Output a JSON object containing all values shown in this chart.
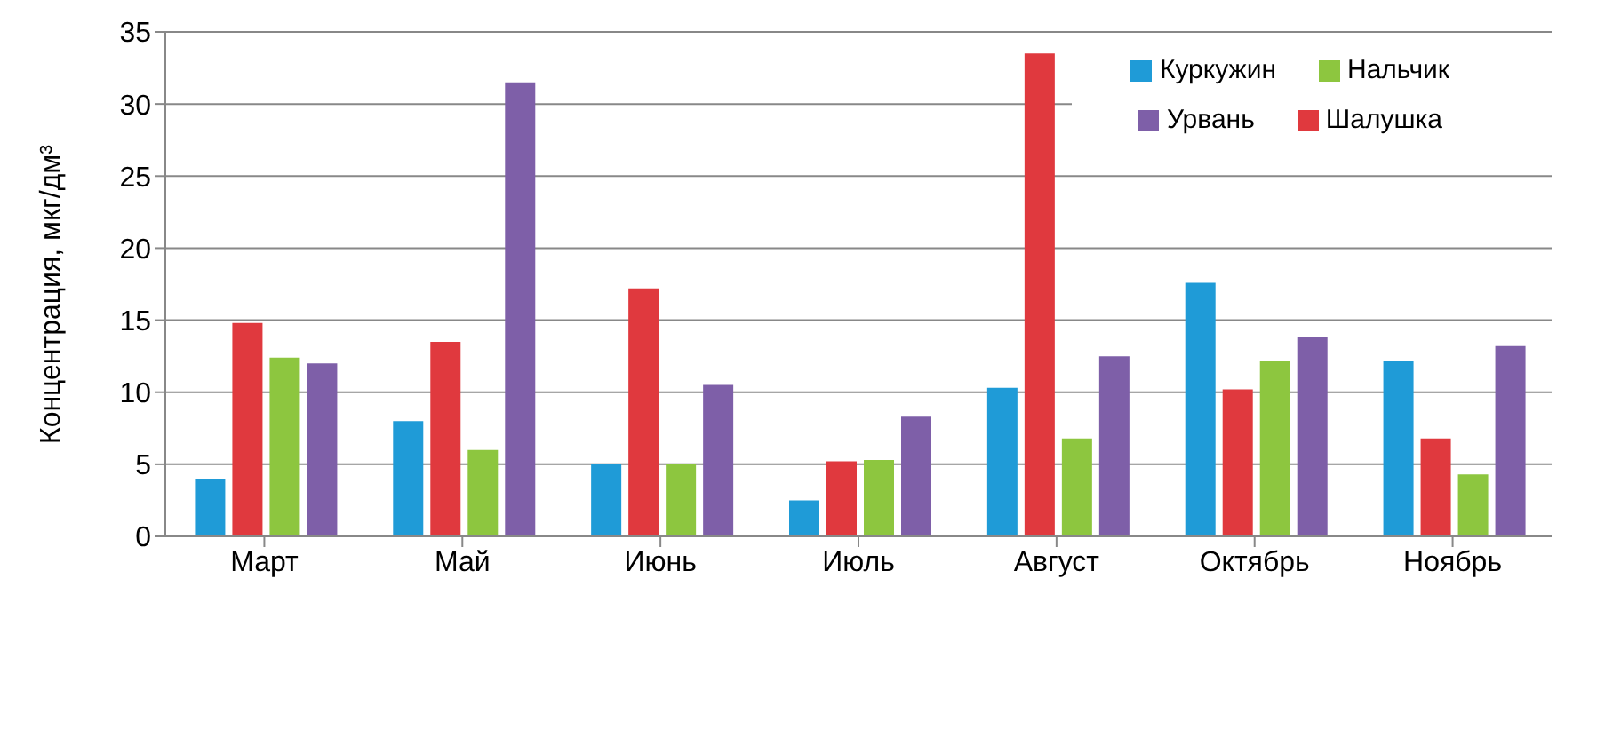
{
  "chart_data": {
    "type": "bar",
    "ylabel": "Концентрация, мкг/дм³",
    "categories": [
      "Март",
      "Май",
      "Июнь",
      "Июль",
      "Август",
      "Октябрь",
      "Ноябрь"
    ],
    "series": [
      {
        "name": "Куркужин",
        "color": "#1f9bd7",
        "values": [
          4,
          8,
          5,
          2.5,
          10.3,
          17.6,
          12.2
        ]
      },
      {
        "name": "Шалушка",
        "color": "#e0393e",
        "values": [
          14.8,
          13.5,
          17.2,
          5.2,
          33.5,
          10.2,
          6.8
        ]
      },
      {
        "name": "Нальчик",
        "color": "#8dc63f",
        "values": [
          12.4,
          6,
          5,
          5.3,
          6.8,
          12.2,
          4.3
        ]
      },
      {
        "name": "Урвань",
        "color": "#7e5fa8",
        "values": [
          12,
          31.5,
          10.5,
          8.3,
          12.5,
          13.8,
          13.2
        ]
      }
    ],
    "ylim": [
      0,
      35
    ],
    "yticks": [
      0,
      5,
      10,
      15,
      20,
      25,
      30,
      35
    ],
    "grid": "y",
    "legend": "top right"
  }
}
